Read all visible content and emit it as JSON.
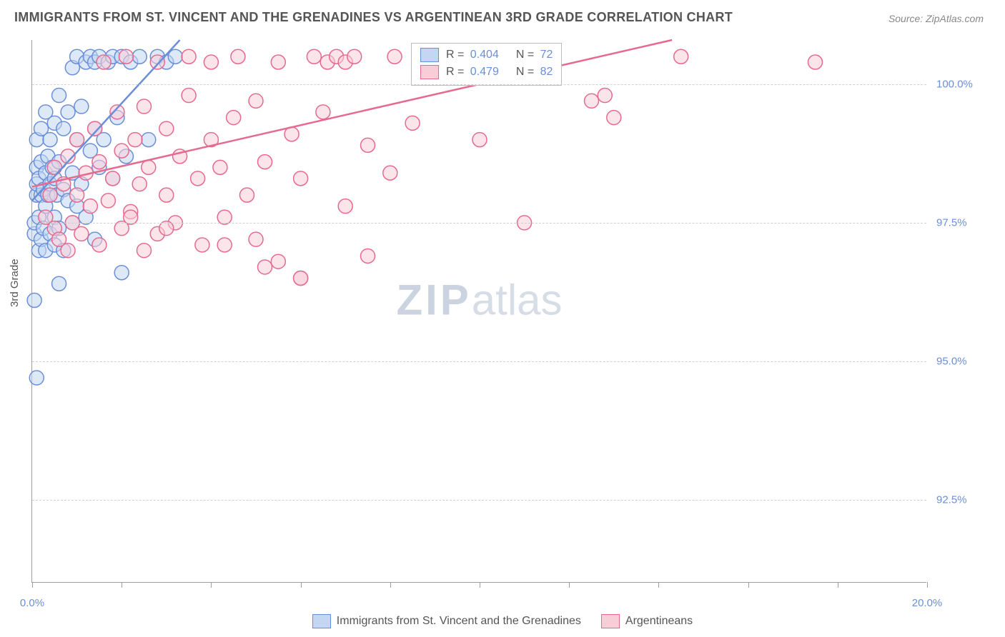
{
  "title": "IMMIGRANTS FROM ST. VINCENT AND THE GRENADINES VS ARGENTINEAN 3RD GRADE CORRELATION CHART",
  "source": "Source: ZipAtlas.com",
  "watermark": {
    "bold": "ZIP",
    "rest": "atlas"
  },
  "y_axis_title": "3rd Grade",
  "chart": {
    "type": "scatter-with-regression",
    "xlim": [
      0.0,
      20.0
    ],
    "ylim": [
      91.0,
      100.8
    ],
    "x_ticks_pct": [
      0,
      10,
      20,
      30,
      40,
      50,
      60,
      70,
      80,
      90,
      100
    ],
    "x_tick_labels_shown": {
      "0": "0.0%",
      "100": "20.0%"
    },
    "y_ticks": [
      92.5,
      95.0,
      97.5,
      100.0
    ],
    "y_tick_labels": [
      "92.5%",
      "95.0%",
      "97.5%",
      "100.0%"
    ],
    "grid_color": "#d0d0d0",
    "axis_color": "#9e9e9e",
    "background_color": "#ffffff",
    "tick_label_color": "#6a8fd8",
    "marker_radius": 10,
    "marker_stroke_width": 1.5,
    "line_width": 2.5,
    "series": [
      {
        "name": "Immigrants from St. Vincent and the Grenadines",
        "fill": "#c3d7f3",
        "stroke": "#6a8fd8",
        "fill_opacity": 0.55,
        "R": 0.404,
        "N": 72,
        "regression": {
          "x1": 0.0,
          "y1": 97.9,
          "x2": 3.3,
          "y2": 100.8
        },
        "points": [
          [
            0.05,
            97.3
          ],
          [
            0.05,
            97.5
          ],
          [
            0.1,
            98.0
          ],
          [
            0.1,
            98.2
          ],
          [
            0.1,
            98.5
          ],
          [
            0.1,
            99.0
          ],
          [
            0.15,
            97.0
          ],
          [
            0.15,
            97.6
          ],
          [
            0.15,
            98.3
          ],
          [
            0.2,
            97.2
          ],
          [
            0.2,
            98.0
          ],
          [
            0.2,
            98.6
          ],
          [
            0.2,
            99.2
          ],
          [
            0.25,
            97.4
          ],
          [
            0.25,
            98.1
          ],
          [
            0.3,
            97.0
          ],
          [
            0.3,
            97.8
          ],
          [
            0.3,
            98.4
          ],
          [
            0.3,
            99.5
          ],
          [
            0.35,
            98.0
          ],
          [
            0.35,
            98.7
          ],
          [
            0.4,
            97.3
          ],
          [
            0.4,
            98.2
          ],
          [
            0.4,
            99.0
          ],
          [
            0.45,
            98.5
          ],
          [
            0.5,
            97.1
          ],
          [
            0.5,
            97.6
          ],
          [
            0.5,
            98.3
          ],
          [
            0.5,
            99.3
          ],
          [
            0.55,
            98.0
          ],
          [
            0.6,
            97.4
          ],
          [
            0.6,
            98.6
          ],
          [
            0.6,
            99.8
          ],
          [
            0.7,
            97.0
          ],
          [
            0.7,
            98.1
          ],
          [
            0.7,
            99.2
          ],
          [
            0.8,
            97.9
          ],
          [
            0.8,
            99.5
          ],
          [
            0.9,
            97.5
          ],
          [
            0.9,
            98.4
          ],
          [
            0.9,
            100.3
          ],
          [
            1.0,
            97.8
          ],
          [
            1.0,
            99.0
          ],
          [
            1.0,
            100.5
          ],
          [
            1.1,
            98.2
          ],
          [
            1.1,
            99.6
          ],
          [
            1.2,
            97.6
          ],
          [
            1.2,
            100.4
          ],
          [
            1.3,
            98.8
          ],
          [
            1.3,
            100.5
          ],
          [
            1.4,
            99.2
          ],
          [
            1.4,
            100.4
          ],
          [
            1.5,
            98.5
          ],
          [
            1.5,
            100.5
          ],
          [
            1.6,
            99.0
          ],
          [
            1.7,
            100.4
          ],
          [
            1.8,
            98.3
          ],
          [
            1.8,
            100.5
          ],
          [
            1.9,
            99.4
          ],
          [
            2.0,
            96.6
          ],
          [
            2.0,
            100.5
          ],
          [
            2.1,
            98.7
          ],
          [
            2.2,
            100.4
          ],
          [
            2.4,
            100.5
          ],
          [
            2.6,
            99.0
          ],
          [
            2.8,
            100.5
          ],
          [
            3.0,
            100.4
          ],
          [
            3.2,
            100.5
          ],
          [
            0.1,
            94.7
          ],
          [
            0.6,
            96.4
          ],
          [
            1.4,
            97.2
          ],
          [
            0.05,
            96.1
          ]
        ]
      },
      {
        "name": "Argentineans",
        "fill": "#f7cdd8",
        "stroke": "#e66a8f",
        "fill_opacity": 0.55,
        "R": 0.479,
        "N": 82,
        "regression": {
          "x1": 0.0,
          "y1": 98.15,
          "x2": 14.3,
          "y2": 100.8
        },
        "points": [
          [
            0.3,
            97.6
          ],
          [
            0.4,
            98.0
          ],
          [
            0.5,
            97.4
          ],
          [
            0.5,
            98.5
          ],
          [
            0.6,
            97.2
          ],
          [
            0.7,
            98.2
          ],
          [
            0.8,
            97.0
          ],
          [
            0.8,
            98.7
          ],
          [
            0.9,
            97.5
          ],
          [
            1.0,
            98.0
          ],
          [
            1.0,
            99.0
          ],
          [
            1.1,
            97.3
          ],
          [
            1.2,
            98.4
          ],
          [
            1.3,
            97.8
          ],
          [
            1.4,
            99.2
          ],
          [
            1.5,
            97.1
          ],
          [
            1.5,
            98.6
          ],
          [
            1.6,
            100.4
          ],
          [
            1.7,
            97.9
          ],
          [
            1.8,
            98.3
          ],
          [
            1.9,
            99.5
          ],
          [
            2.0,
            97.4
          ],
          [
            2.0,
            98.8
          ],
          [
            2.1,
            100.5
          ],
          [
            2.2,
            97.7
          ],
          [
            2.3,
            99.0
          ],
          [
            2.4,
            98.2
          ],
          [
            2.5,
            97.0
          ],
          [
            2.5,
            99.6
          ],
          [
            2.6,
            98.5
          ],
          [
            2.8,
            97.3
          ],
          [
            2.8,
            100.4
          ],
          [
            3.0,
            98.0
          ],
          [
            3.0,
            99.2
          ],
          [
            3.2,
            97.5
          ],
          [
            3.3,
            98.7
          ],
          [
            3.5,
            99.8
          ],
          [
            3.5,
            100.5
          ],
          [
            3.7,
            98.3
          ],
          [
            3.8,
            97.1
          ],
          [
            4.0,
            99.0
          ],
          [
            4.0,
            100.4
          ],
          [
            4.2,
            98.5
          ],
          [
            4.3,
            97.6
          ],
          [
            4.5,
            99.4
          ],
          [
            4.6,
            100.5
          ],
          [
            4.8,
            98.0
          ],
          [
            5.0,
            97.2
          ],
          [
            5.0,
            99.7
          ],
          [
            5.2,
            98.6
          ],
          [
            5.5,
            96.8
          ],
          [
            5.5,
            100.4
          ],
          [
            5.8,
            99.1
          ],
          [
            6.0,
            96.5
          ],
          [
            6.0,
            98.3
          ],
          [
            6.3,
            100.5
          ],
          [
            6.5,
            99.5
          ],
          [
            6.6,
            100.4
          ],
          [
            6.8,
            100.5
          ],
          [
            7.0,
            97.8
          ],
          [
            7.0,
            100.4
          ],
          [
            7.2,
            100.5
          ],
          [
            7.5,
            96.9
          ],
          [
            7.5,
            98.9
          ],
          [
            8.0,
            98.4
          ],
          [
            8.1,
            100.5
          ],
          [
            8.5,
            99.3
          ],
          [
            9.0,
            100.4
          ],
          [
            10.0,
            99.0
          ],
          [
            10.5,
            100.5
          ],
          [
            11.0,
            97.5
          ],
          [
            11.5,
            100.4
          ],
          [
            12.5,
            99.7
          ],
          [
            12.8,
            99.8
          ],
          [
            13.0,
            99.4
          ],
          [
            14.5,
            100.5
          ],
          [
            17.5,
            100.4
          ],
          [
            5.2,
            96.7
          ],
          [
            6.0,
            96.5
          ],
          [
            4.3,
            97.1
          ],
          [
            3.0,
            97.4
          ],
          [
            2.2,
            97.6
          ]
        ]
      }
    ]
  },
  "legend_top": {
    "R_label": "R =",
    "N_label": "N ="
  },
  "legend_bottom": [
    {
      "series": 0
    },
    {
      "series": 1
    }
  ]
}
